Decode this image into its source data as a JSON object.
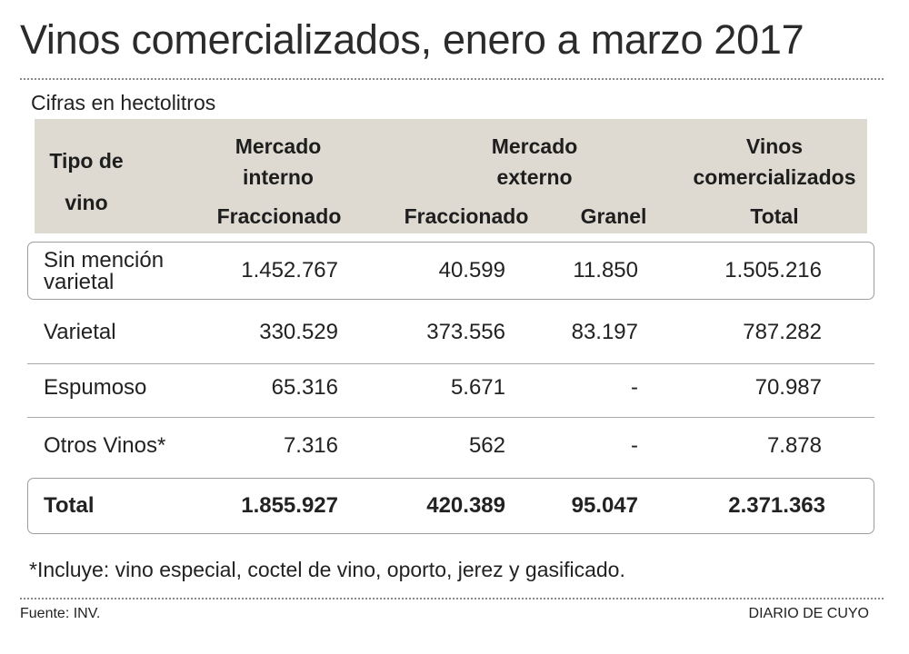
{
  "chart_data": {
    "type": "table",
    "title": "Vinos comercializados, enero a marzo 2017",
    "subtitle": "Cifras en hectolitros",
    "header": {
      "col1": "Tipo de vino",
      "col1_line1": "Tipo de",
      "col1_line2": "vino",
      "group_interno": [
        "Mercado",
        "interno"
      ],
      "group_externo": [
        "Mercado",
        "externo"
      ],
      "group_total": [
        "Vinos",
        "comercializados"
      ],
      "sub": [
        "Fraccionado",
        "Fraccionado",
        "Granel",
        "Total"
      ]
    },
    "rows": [
      {
        "label_lines": [
          "Sin mención",
          "varietal"
        ],
        "values": [
          "1.452.767",
          "40.599",
          "11.850",
          "1.505.216"
        ]
      },
      {
        "label_lines": [
          "Varietal"
        ],
        "values": [
          "330.529",
          "373.556",
          "83.197",
          "787.282"
        ]
      },
      {
        "label_lines": [
          "Espumoso"
        ],
        "values": [
          "65.316",
          "5.671",
          "-",
          "70.987"
        ]
      },
      {
        "label_lines": [
          "Otros Vinos*"
        ],
        "values": [
          "7.316",
          "562",
          "-",
          "7.878"
        ]
      }
    ],
    "total": {
      "label": "Total",
      "values": [
        "1.855.927",
        "420.389",
        "95.047",
        "2.371.363"
      ]
    },
    "footnote": "*Incluye: vino especial, coctel de vino, oporto, jerez y gasificado.",
    "source": "Fuente: INV.",
    "publisher": "DIARIO DE CUYO"
  }
}
